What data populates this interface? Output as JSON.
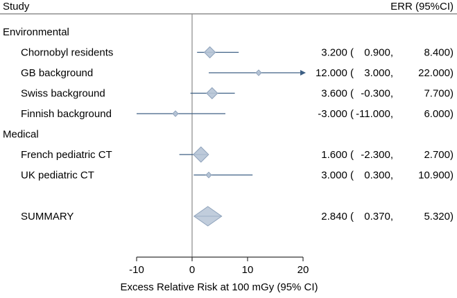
{
  "chart_data": {
    "type": "forest",
    "header": {
      "study_label": "Study",
      "estimate_label": "ERR (95%CI)"
    },
    "xlabel": "Excess Relative Risk at 100 mGy (95% CI)",
    "xlim": [
      -10,
      20
    ],
    "xticks": [
      "-10",
      "0",
      "10",
      "20"
    ],
    "reference_line": 0,
    "colors": {
      "line": "#3d5f84",
      "marker": "#b6c4d6",
      "marker_edge": "#8ea2bb",
      "ref_line": "#8a8a8a"
    },
    "groups": [
      {
        "name": "Environmental",
        "studies": [
          {
            "label": "Chornobyl residents",
            "est": 3.2,
            "lo": 0.9,
            "hi": 8.4,
            "size": "medium",
            "text": {
              "est": "3.200 (",
              "lo": "0.900,",
              "hi": "8.400)"
            }
          },
          {
            "label": "GB background",
            "est": 12.0,
            "lo": 3.0,
            "hi": 22.0,
            "size": "small",
            "arrow": true,
            "text": {
              "est": "12.000 (",
              "lo": "3.000,",
              "hi": "22.000)"
            }
          },
          {
            "label": "Swiss background",
            "est": 3.6,
            "lo": -0.3,
            "hi": 7.7,
            "size": "medium",
            "text": {
              "est": "3.600 (",
              "lo": "-0.300,",
              "hi": "7.700)"
            }
          },
          {
            "label": "Finnish background",
            "est": -3.0,
            "lo": -11.0,
            "hi": 6.0,
            "size": "small",
            "text": {
              "est": "-3.000 (",
              "lo": "-11.000,",
              "hi": "6.000)"
            }
          }
        ]
      },
      {
        "name": "Medical",
        "studies": [
          {
            "label": "French pediatric CT",
            "est": 1.6,
            "lo": -2.3,
            "hi": 2.7,
            "size": "large",
            "text": {
              "est": "1.600 (",
              "lo": "-2.300,",
              "hi": "2.700)"
            }
          },
          {
            "label": "UK pediatric CT",
            "est": 3.0,
            "lo": 0.3,
            "hi": 10.9,
            "size": "small",
            "text": {
              "est": "3.000 (",
              "lo": "0.300,",
              "hi": "10.900)"
            }
          }
        ]
      }
    ],
    "summary": {
      "label": "SUMMARY",
      "est": 2.84,
      "lo": 0.37,
      "hi": 5.32,
      "text": {
        "est": "2.840 (",
        "lo": "0.370,",
        "hi": "5.320)"
      }
    }
  }
}
